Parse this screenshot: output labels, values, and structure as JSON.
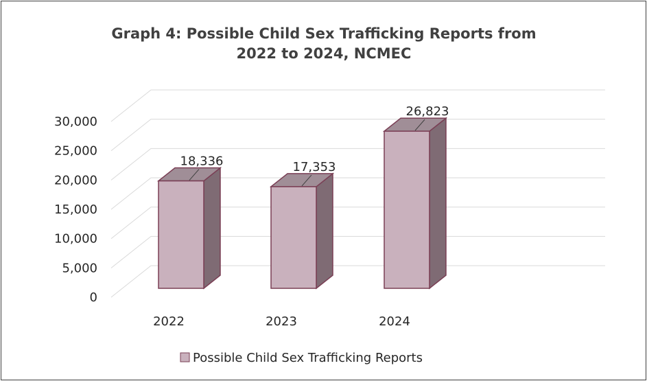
{
  "chart_data": {
    "type": "bar",
    "title": "Graph 4: Possible Child Sex Trafficking Reports from 2022 to 2024, NCMEC",
    "title_lines": [
      "Graph 4: Possible Child Sex Trafficking Reports from",
      "2022 to 2024, NCMEC"
    ],
    "categories": [
      "2022",
      "2023",
      "2024"
    ],
    "series": [
      {
        "name": "Possible Child Sex Trafficking Reports",
        "values": [
          18336,
          17353,
          26823
        ],
        "value_labels": [
          "18,336",
          "17,353",
          "26,823"
        ],
        "color": "#c9b1bd"
      }
    ],
    "y_ticks": [
      0,
      5000,
      10000,
      15000,
      20000,
      25000,
      30000
    ],
    "y_tick_labels": [
      "0",
      "5,000",
      "10,000",
      "15,000",
      "20,000",
      "25,000",
      "30,000"
    ],
    "ylim": [
      0,
      30000
    ],
    "xlabel": "",
    "ylabel": "",
    "grid": true,
    "legend_position": "bottom",
    "style": "3d-column",
    "colors": {
      "bar_front": "#c9b1bd",
      "bar_side": "#7f6b74",
      "bar_top": "#a08e97",
      "bar_edge": "#7a3f55",
      "grid": "#d9d9d9",
      "text": "#262626",
      "title": "#404040"
    }
  }
}
